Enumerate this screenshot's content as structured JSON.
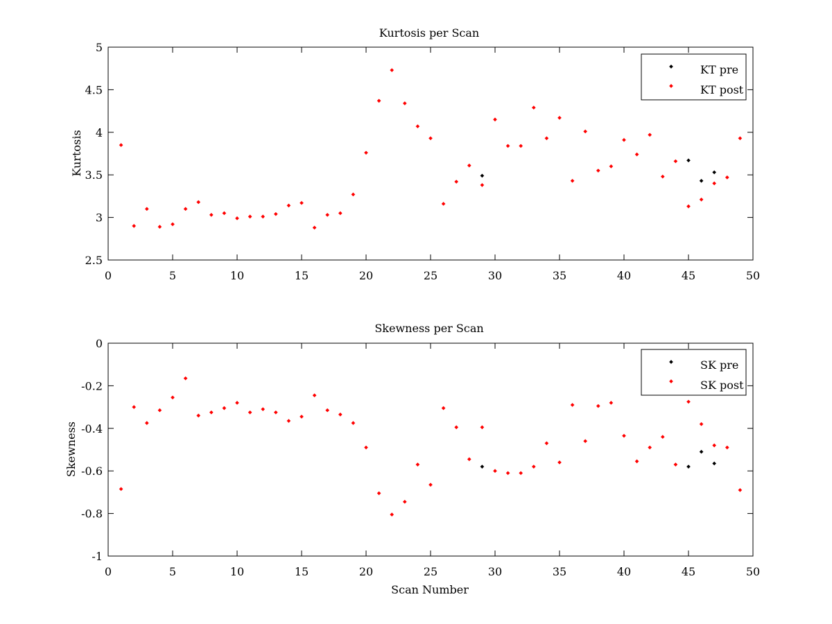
{
  "chart_data": [
    {
      "type": "scatter",
      "title": "Kurtosis per Scan",
      "xlabel": "",
      "ylabel": "Kurtosis",
      "xlim": [
        0,
        50
      ],
      "ylim": [
        2.5,
        5
      ],
      "xticks": [
        "0",
        "5",
        "10",
        "15",
        "20",
        "25",
        "30",
        "35",
        "40",
        "45",
        "50"
      ],
      "yticks": [
        "2.5",
        "3",
        "3.5",
        "4",
        "4.5",
        "5"
      ],
      "grid": false,
      "legend_position": "top-right",
      "series": [
        {
          "name": "KT pre",
          "color": "#000000",
          "points": [
            [
              29,
              3.49
            ],
            [
              45,
              3.67
            ],
            [
              46,
              3.43
            ],
            [
              47,
              3.53
            ]
          ]
        },
        {
          "name": "KT post",
          "color": "#ff0000",
          "points": [
            [
              1,
              3.85
            ],
            [
              2,
              2.9
            ],
            [
              3,
              3.1
            ],
            [
              4,
              2.89
            ],
            [
              5,
              2.92
            ],
            [
              6,
              3.1
            ],
            [
              7,
              3.18
            ],
            [
              8,
              3.03
            ],
            [
              9,
              3.05
            ],
            [
              10,
              2.99
            ],
            [
              11,
              3.01
            ],
            [
              12,
              3.01
            ],
            [
              13,
              3.04
            ],
            [
              14,
              3.14
            ],
            [
              15,
              3.17
            ],
            [
              16,
              2.88
            ],
            [
              17,
              3.03
            ],
            [
              18,
              3.05
            ],
            [
              19,
              3.27
            ],
            [
              20,
              3.76
            ],
            [
              21,
              4.37
            ],
            [
              22,
              4.73
            ],
            [
              23,
              4.34
            ],
            [
              24,
              4.07
            ],
            [
              25,
              3.93
            ],
            [
              26,
              3.16
            ],
            [
              27,
              3.42
            ],
            [
              28,
              3.61
            ],
            [
              29,
              3.38
            ],
            [
              30,
              4.15
            ],
            [
              31,
              3.84
            ],
            [
              32,
              3.84
            ],
            [
              33,
              4.29
            ],
            [
              34,
              3.93
            ],
            [
              35,
              4.17
            ],
            [
              36,
              3.43
            ],
            [
              37,
              4.01
            ],
            [
              38,
              3.55
            ],
            [
              39,
              3.6
            ],
            [
              40,
              3.91
            ],
            [
              41,
              3.74
            ],
            [
              42,
              3.97
            ],
            [
              43,
              3.48
            ],
            [
              44,
              3.66
            ],
            [
              45,
              3.13
            ],
            [
              46,
              3.21
            ],
            [
              47,
              3.4
            ],
            [
              48,
              3.47
            ],
            [
              49,
              3.93
            ]
          ]
        }
      ]
    },
    {
      "type": "scatter",
      "title": "Skewness per Scan",
      "xlabel": "Scan Number",
      "ylabel": "Skewness",
      "xlim": [
        0,
        50
      ],
      "ylim": [
        -1,
        0
      ],
      "xticks": [
        "0",
        "5",
        "10",
        "15",
        "20",
        "25",
        "30",
        "35",
        "40",
        "45",
        "50"
      ],
      "yticks": [
        "-1",
        "-0.8",
        "-0.6",
        "-0.4",
        "-0.2",
        "0"
      ],
      "grid": false,
      "legend_position": "top-right",
      "series": [
        {
          "name": "SK pre",
          "color": "#000000",
          "points": [
            [
              29,
              -0.58
            ],
            [
              45,
              -0.58
            ],
            [
              46,
              -0.51
            ],
            [
              47,
              -0.565
            ]
          ]
        },
        {
          "name": "SK post",
          "color": "#ff0000",
          "points": [
            [
              1,
              -0.685
            ],
            [
              2,
              -0.3
            ],
            [
              3,
              -0.375
            ],
            [
              4,
              -0.315
            ],
            [
              5,
              -0.255
            ],
            [
              6,
              -0.165
            ],
            [
              7,
              -0.34
            ],
            [
              8,
              -0.325
            ],
            [
              9,
              -0.305
            ],
            [
              10,
              -0.28
            ],
            [
              11,
              -0.325
            ],
            [
              12,
              -0.31
            ],
            [
              13,
              -0.325
            ],
            [
              14,
              -0.365
            ],
            [
              15,
              -0.345
            ],
            [
              16,
              -0.245
            ],
            [
              17,
              -0.315
            ],
            [
              18,
              -0.335
            ],
            [
              19,
              -0.375
            ],
            [
              20,
              -0.49
            ],
            [
              21,
              -0.705
            ],
            [
              22,
              -0.805
            ],
            [
              23,
              -0.745
            ],
            [
              24,
              -0.57
            ],
            [
              25,
              -0.665
            ],
            [
              26,
              -0.305
            ],
            [
              27,
              -0.395
            ],
            [
              28,
              -0.545
            ],
            [
              29,
              -0.395
            ],
            [
              30,
              -0.6
            ],
            [
              31,
              -0.61
            ],
            [
              32,
              -0.61
            ],
            [
              33,
              -0.58
            ],
            [
              34,
              -0.47
            ],
            [
              35,
              -0.56
            ],
            [
              36,
              -0.29
            ],
            [
              37,
              -0.46
            ],
            [
              38,
              -0.295
            ],
            [
              39,
              -0.28
            ],
            [
              40,
              -0.435
            ],
            [
              41,
              -0.555
            ],
            [
              42,
              -0.49
            ],
            [
              43,
              -0.44
            ],
            [
              44,
              -0.57
            ],
            [
              45,
              -0.275
            ],
            [
              46,
              -0.38
            ],
            [
              47,
              -0.48
            ],
            [
              48,
              -0.49
            ],
            [
              49,
              -0.69
            ]
          ]
        }
      ]
    }
  ]
}
